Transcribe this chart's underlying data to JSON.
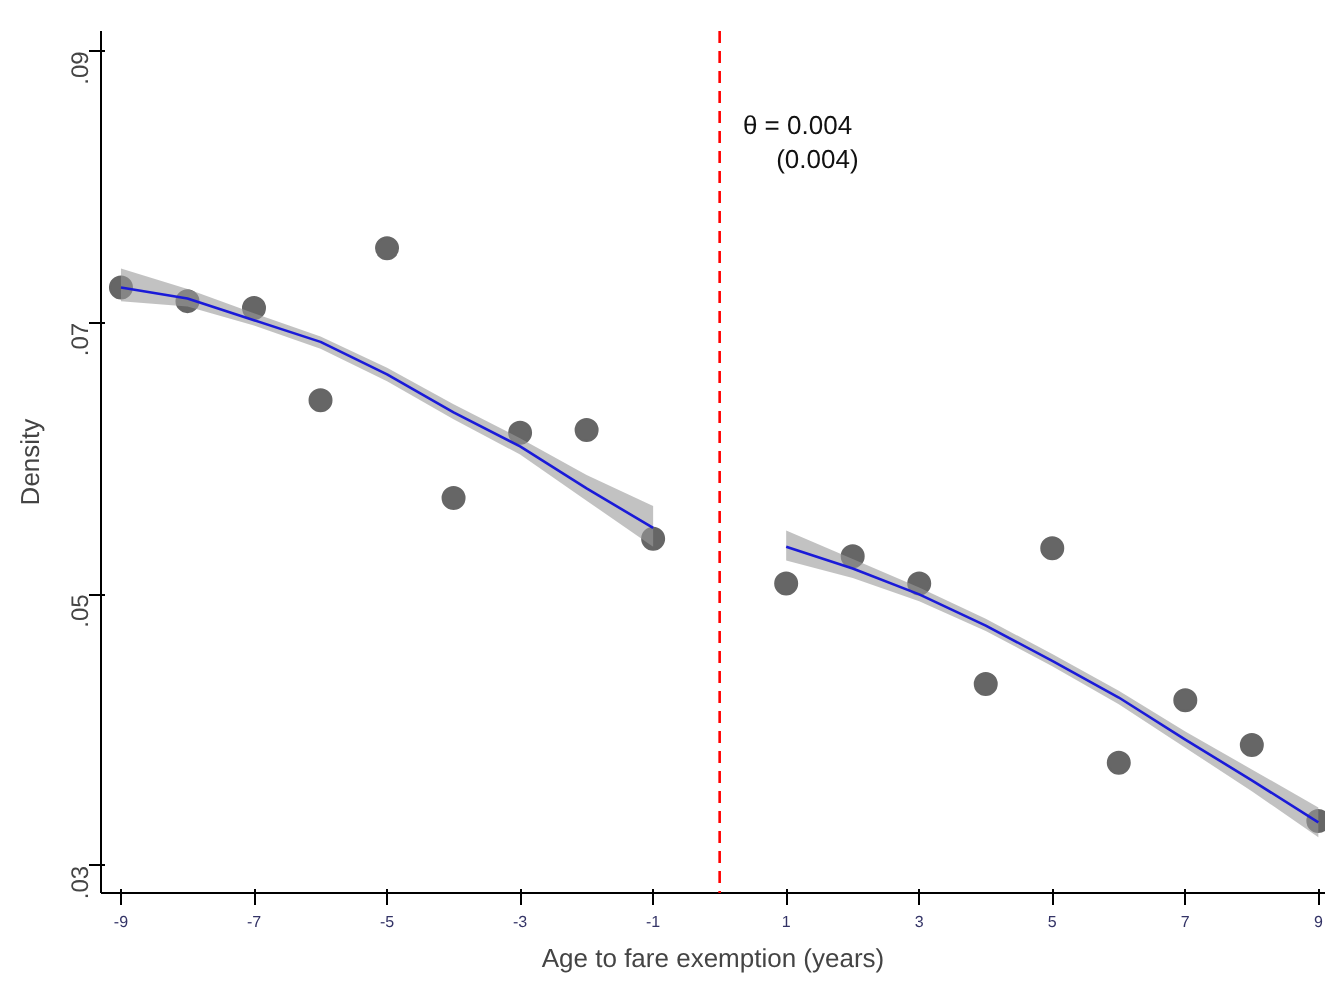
{
  "chart_data": {
    "type": "scatter",
    "xlabel": "Age to fare exemption (years)",
    "ylabel": "Density",
    "xlim": [
      -9.3,
      9.1
    ],
    "ylim": [
      0.028,
      0.0915
    ],
    "xticks": [
      -9,
      -7,
      -5,
      -3,
      -1,
      1,
      3,
      5,
      7,
      9
    ],
    "yticks": [
      {
        "value": 0.03,
        "label": ".03"
      },
      {
        "value": 0.05,
        "label": ".05"
      },
      {
        "value": 0.07,
        "label": ".07"
      },
      {
        "value": 0.09,
        "label": ".09"
      }
    ],
    "grid": false,
    "series": [
      {
        "marker": "circle",
        "color": "#666666",
        "x": [
          -9,
          -8,
          -7,
          -6,
          -5,
          -4,
          -3,
          -2,
          -1,
          1,
          2,
          3,
          4,
          5,
          6,
          7,
          8,
          9
        ],
        "values": [
          0.0726,
          0.0716,
          0.0711,
          0.0643,
          0.0755,
          0.0571,
          0.0619,
          0.0621,
          0.0541,
          0.0508,
          0.0528,
          0.0508,
          0.0434,
          0.0534,
          0.0376,
          0.0422,
          0.0389,
          0.0333
        ]
      },
      {
        "type": "line",
        "color": "#1a1ad8",
        "x": [
          -9,
          -8,
          -7,
          -6,
          -5,
          -4,
          -3,
          -2,
          -1
        ],
        "values": [
          0.0726,
          0.0718,
          0.0702,
          0.0686,
          0.0662,
          0.0634,
          0.0609,
          0.0578,
          0.0549
        ],
        "lower": [
          0.0716,
          0.0712,
          0.0698,
          0.0681,
          0.0657,
          0.0629,
          0.0603,
          0.0569,
          0.0535
        ],
        "upper": [
          0.074,
          0.0725,
          0.0707,
          0.069,
          0.0667,
          0.064,
          0.0615,
          0.0588,
          0.0565
        ]
      },
      {
        "type": "line",
        "color": "#1a1ad8",
        "x": [
          1,
          2,
          3,
          4,
          5,
          6,
          7,
          8,
          9
        ],
        "values": [
          0.0535,
          0.0519,
          0.05,
          0.0477,
          0.0451,
          0.0424,
          0.0393,
          0.0363,
          0.0332
        ],
        "lower": [
          0.0525,
          0.0512,
          0.0495,
          0.0473,
          0.0447,
          0.0419,
          0.0387,
          0.0355,
          0.0321
        ],
        "upper": [
          0.0547,
          0.0526,
          0.0505,
          0.0482,
          0.0456,
          0.0429,
          0.0399,
          0.0371,
          0.0343
        ]
      }
    ],
    "ref_lines": [
      {
        "axis": "x",
        "value": 0,
        "color": "#ff0000",
        "line_style": "dashed"
      }
    ],
    "annotations": [
      "θ = 0.004",
      "(0.004)"
    ]
  }
}
